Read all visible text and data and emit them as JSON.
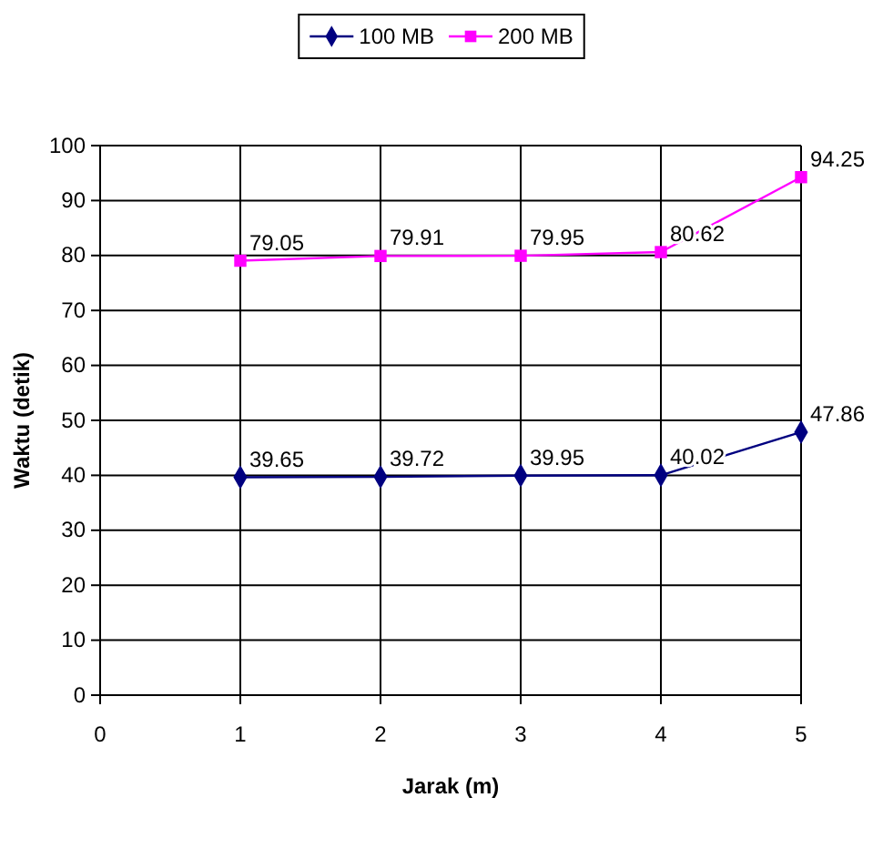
{
  "chart_data": {
    "type": "line",
    "xlabel": "Jarak (m)",
    "ylabel": "Waktu (detik)",
    "x": [
      1,
      2,
      3,
      4,
      5
    ],
    "series": [
      {
        "name": "100 MB",
        "color": "#000080",
        "marker": "diamond",
        "values": [
          39.65,
          39.72,
          39.95,
          40.02,
          47.86
        ]
      },
      {
        "name": "200 MB",
        "color": "#ff00ff",
        "marker": "square",
        "values": [
          79.05,
          79.91,
          79.95,
          80.62,
          94.25
        ]
      }
    ],
    "xlim": [
      0,
      5
    ],
    "xticks": [
      0,
      1,
      2,
      3,
      4,
      5
    ],
    "ylim": [
      0,
      100
    ],
    "yticks": [
      0,
      10,
      20,
      30,
      40,
      50,
      60,
      70,
      80,
      90,
      100
    ],
    "grid": true,
    "legend": "top",
    "data_labels": true
  }
}
